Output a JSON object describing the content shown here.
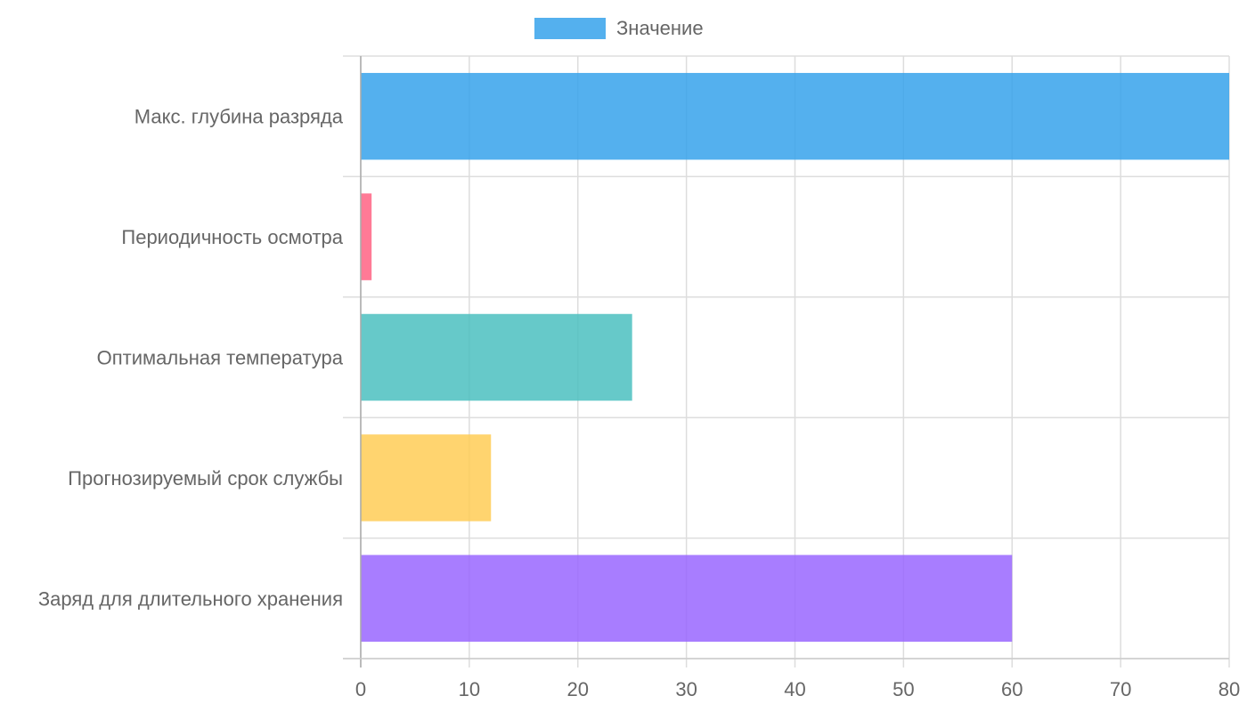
{
  "chart_data": {
    "type": "bar",
    "orientation": "horizontal",
    "categories": [
      "Макс. глубина разряда",
      "Периодичность осмотра",
      "Оптимальная температура",
      "Прогнозируемый срок службы",
      "Заряд для длительного хранения"
    ],
    "series": [
      {
        "name": "Значение",
        "values": [
          80,
          1,
          25,
          12,
          60
        ]
      }
    ],
    "bar_colors": [
      "#36A2EB",
      "#FF6384",
      "#4BC0C0",
      "#FFCD56",
      "#9966FF"
    ],
    "legend_color": "#36A2EB",
    "xlim": [
      0,
      80
    ],
    "x_ticks": [
      "0",
      "10",
      "20",
      "30",
      "40",
      "50",
      "60",
      "70",
      "80"
    ],
    "legend_position": "top",
    "grid": true
  }
}
